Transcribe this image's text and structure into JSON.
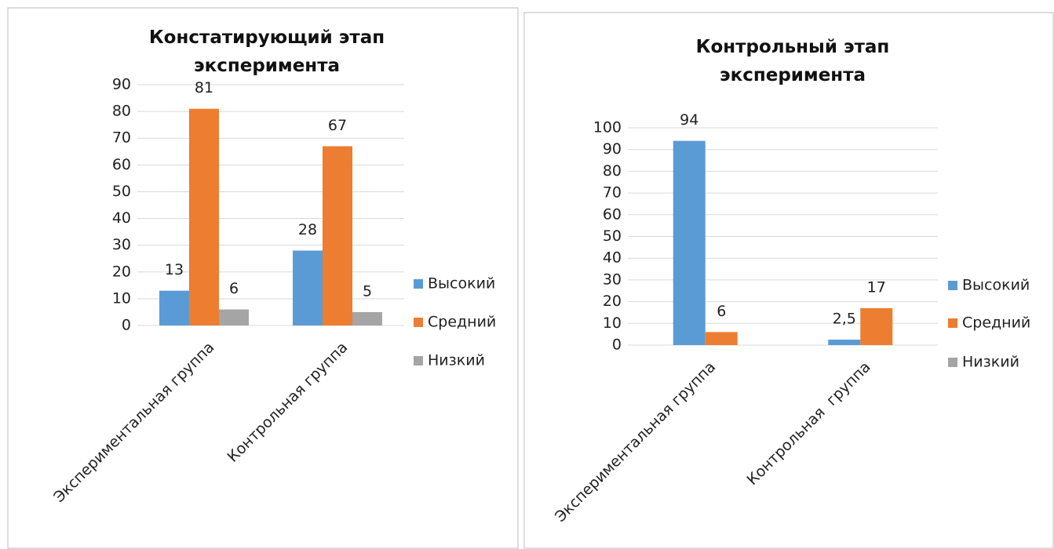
{
  "chart_data": [
    {
      "type": "bar",
      "title": "Констатирующий этап эксперимента",
      "categories": [
        "Экспериментальная группа",
        "Контрольная группа"
      ],
      "series": [
        {
          "name": "Высокий",
          "color": "#5b9bd5",
          "values": [
            13,
            28
          ]
        },
        {
          "name": "Средний",
          "color": "#ed7d31",
          "values": [
            81,
            67
          ]
        },
        {
          "name": "Низкий",
          "color": "#a5a5a5",
          "values": [
            6,
            5
          ]
        }
      ],
      "ylim": [
        0,
        90
      ],
      "yticks": [
        0,
        10,
        20,
        30,
        40,
        50,
        60,
        70,
        80,
        90
      ],
      "grid": true,
      "legend": "right"
    },
    {
      "type": "bar",
      "title": "Контрольный этап эксперимента",
      "categories": [
        "Экспериментальная группа",
        "Контрольная  группа"
      ],
      "series": [
        {
          "name": "Высокий",
          "color": "#5b9bd5",
          "values": [
            94,
            2.5
          ],
          "value_labels": [
            "94",
            "2,5"
          ]
        },
        {
          "name": "Средний",
          "color": "#ed7d31",
          "values": [
            6,
            17
          ]
        },
        {
          "name": "Низкий",
          "color": "#a5a5a5",
          "values": [
            null,
            null
          ]
        }
      ],
      "ylim": [
        0,
        100
      ],
      "yticks": [
        0,
        10,
        20,
        30,
        40,
        50,
        60,
        70,
        80,
        90,
        100
      ],
      "grid": true,
      "legend": "right"
    }
  ]
}
